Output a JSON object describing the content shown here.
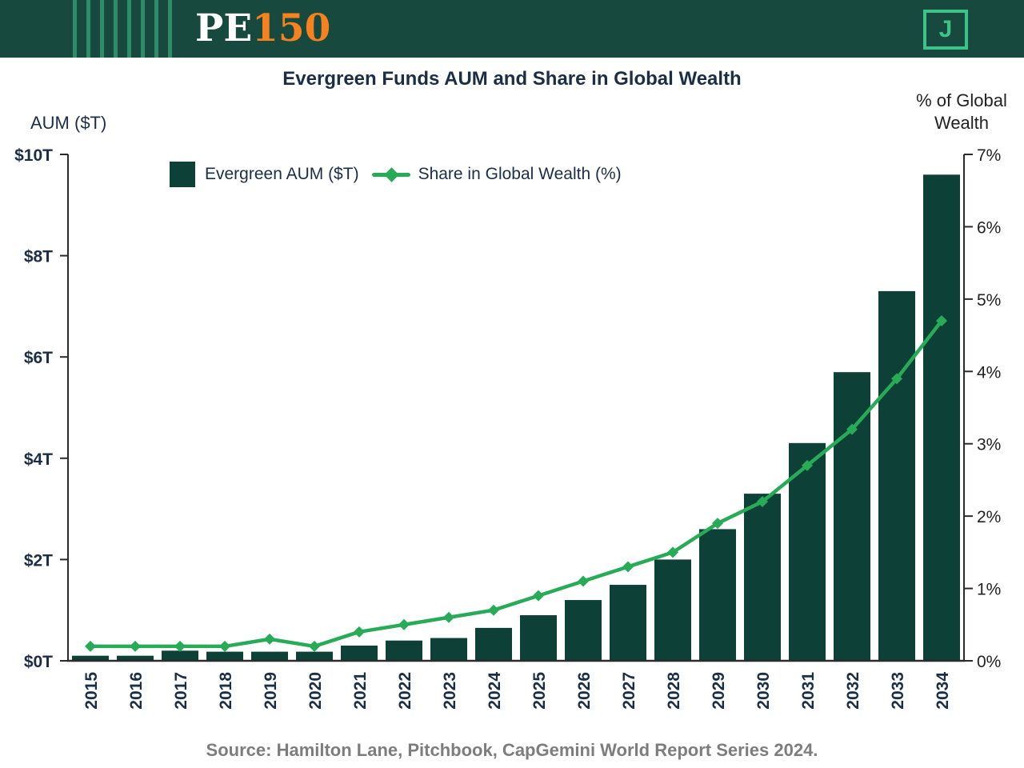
{
  "header": {
    "logo_pe": "PE",
    "logo_150": "150",
    "logo_j": "J"
  },
  "title": "Evergreen Funds AUM and Share in Global Wealth",
  "left_axis_title": "AUM ($T)",
  "right_axis_title": "% of Global Wealth",
  "legend": {
    "bar_label": "Evergreen AUM ($T)",
    "line_label": "Share in Global Wealth (%)"
  },
  "source": "Source: Hamilton Lane, Pitchbook, CapGemini World Report Series 2024.",
  "colors": {
    "header_bg": "#17493e",
    "header_stripe": "#2e8c68",
    "logo_orange": "#f5821f",
    "logo_green": "#3cc488",
    "bar": "#0d4037",
    "line": "#27ab56",
    "axis": "#2b2b2b",
    "text_navy": "#1b2e47",
    "text_dark": "#222222",
    "source_gray": "#7d7d7d"
  },
  "chart_data": {
    "type": "bar",
    "subtype": "bar-line-combo",
    "title": "Evergreen Funds AUM and Share in Global Wealth",
    "categories": [
      "2015",
      "2016",
      "2017",
      "2018",
      "2019",
      "2020",
      "2021",
      "2022",
      "2023",
      "2024",
      "2025",
      "2026",
      "2027",
      "2028",
      "2029",
      "2030",
      "2031",
      "2032",
      "2033",
      "2034"
    ],
    "series": [
      {
        "name": "Evergreen AUM ($T)",
        "type": "bar",
        "axis": "left",
        "values": [
          0.1,
          0.1,
          0.2,
          0.18,
          0.18,
          0.18,
          0.3,
          0.4,
          0.45,
          0.65,
          0.9,
          1.2,
          1.5,
          2.0,
          2.6,
          3.3,
          4.3,
          5.7,
          7.3,
          9.6
        ]
      },
      {
        "name": "Share in Global Wealth (%)",
        "type": "line",
        "axis": "right",
        "values": [
          0.2,
          0.2,
          0.2,
          0.2,
          0.3,
          0.2,
          0.4,
          0.5,
          0.6,
          0.7,
          0.9,
          1.1,
          1.3,
          1.5,
          1.9,
          2.2,
          2.7,
          3.2,
          3.9,
          4.7
        ]
      }
    ],
    "left_axis": {
      "label": "AUM ($T)",
      "ticks": [
        "$0T",
        "$2T",
        "$4T",
        "$6T",
        "$8T",
        "$10T"
      ],
      "range": [
        0,
        10
      ],
      "tick_step": 2
    },
    "right_axis": {
      "label": "% of Global Wealth",
      "ticks": [
        "0%",
        "1%",
        "2%",
        "3%",
        "4%",
        "5%",
        "6%",
        "7%"
      ],
      "range": [
        0,
        7
      ],
      "tick_step": 1
    },
    "grid": false,
    "legend_position": "top-left"
  }
}
